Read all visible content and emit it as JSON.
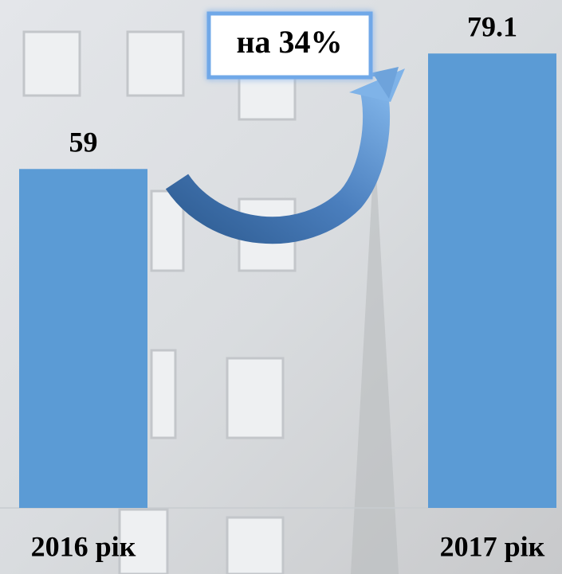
{
  "chart_data": {
    "type": "bar",
    "categories": [
      "2016 рік",
      "2017 рік"
    ],
    "values": [
      59,
      79.1
    ],
    "color": "#5b9bd5",
    "ylim": [
      0,
      88
    ],
    "annotation": "на 34%"
  }
}
